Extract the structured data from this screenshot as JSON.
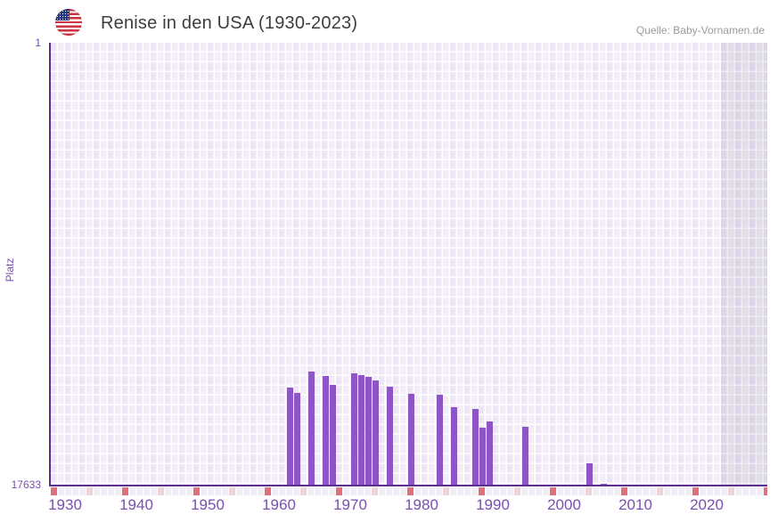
{
  "header": {
    "title": "Renise in den USA (1930-2023)",
    "source": "Quelle: Baby-Vornamen.de",
    "flag": "us-flag-icon"
  },
  "colors": {
    "bar": "#8d55c5",
    "axis_line": "#5c2d91",
    "tick_text": "#7a4fb0",
    "grid_cell_dark": "#ece6f5",
    "grid_cell_light": "#f2edf9",
    "decade_tick_cell": "#e0707e",
    "half_decade_tick_cell": "#f3d4dd",
    "future_band": "rgba(92,80,115,0.10)",
    "title_text": "#3d3d3d",
    "source_text": "#9a9a9a"
  },
  "chart_data": {
    "type": "bar",
    "title": "Renise in den USA (1930-2023)",
    "xlabel": "",
    "ylabel": "Platz",
    "legend": "none",
    "grid": "on",
    "y_axis": {
      "top_label": "1",
      "bottom_label": "17633",
      "min": 1,
      "max": 17633,
      "inverted": true
    },
    "x_axis": {
      "start_year": 1930,
      "end_year": 2030,
      "data_end_year": 2023,
      "tick_labels": [
        "1930",
        "1940",
        "1950",
        "1960",
        "1970",
        "1980",
        "1990",
        "2000",
        "2010",
        "2020"
      ],
      "decade_tick_interval": 10,
      "half_decade_tick_interval": 5
    },
    "points": [
      {
        "year": 1963,
        "rank": 13730
      },
      {
        "year": 1964,
        "rank": 13945
      },
      {
        "year": 1966,
        "rank": 13090
      },
      {
        "year": 1968,
        "rank": 13270
      },
      {
        "year": 1969,
        "rank": 13625
      },
      {
        "year": 1972,
        "rank": 13165
      },
      {
        "year": 1973,
        "rank": 13235
      },
      {
        "year": 1974,
        "rank": 13305
      },
      {
        "year": 1975,
        "rank": 13445
      },
      {
        "year": 1977,
        "rank": 13695
      },
      {
        "year": 1980,
        "rank": 13980
      },
      {
        "year": 1984,
        "rank": 14015
      },
      {
        "year": 1986,
        "rank": 14510
      },
      {
        "year": 1989,
        "rank": 14580
      },
      {
        "year": 1990,
        "rank": 15325
      },
      {
        "year": 1991,
        "rank": 15080
      },
      {
        "year": 1996,
        "rank": 15290
      },
      {
        "year": 2005,
        "rank": 16745
      },
      {
        "year": 2007,
        "rank": 17560
      }
    ]
  }
}
